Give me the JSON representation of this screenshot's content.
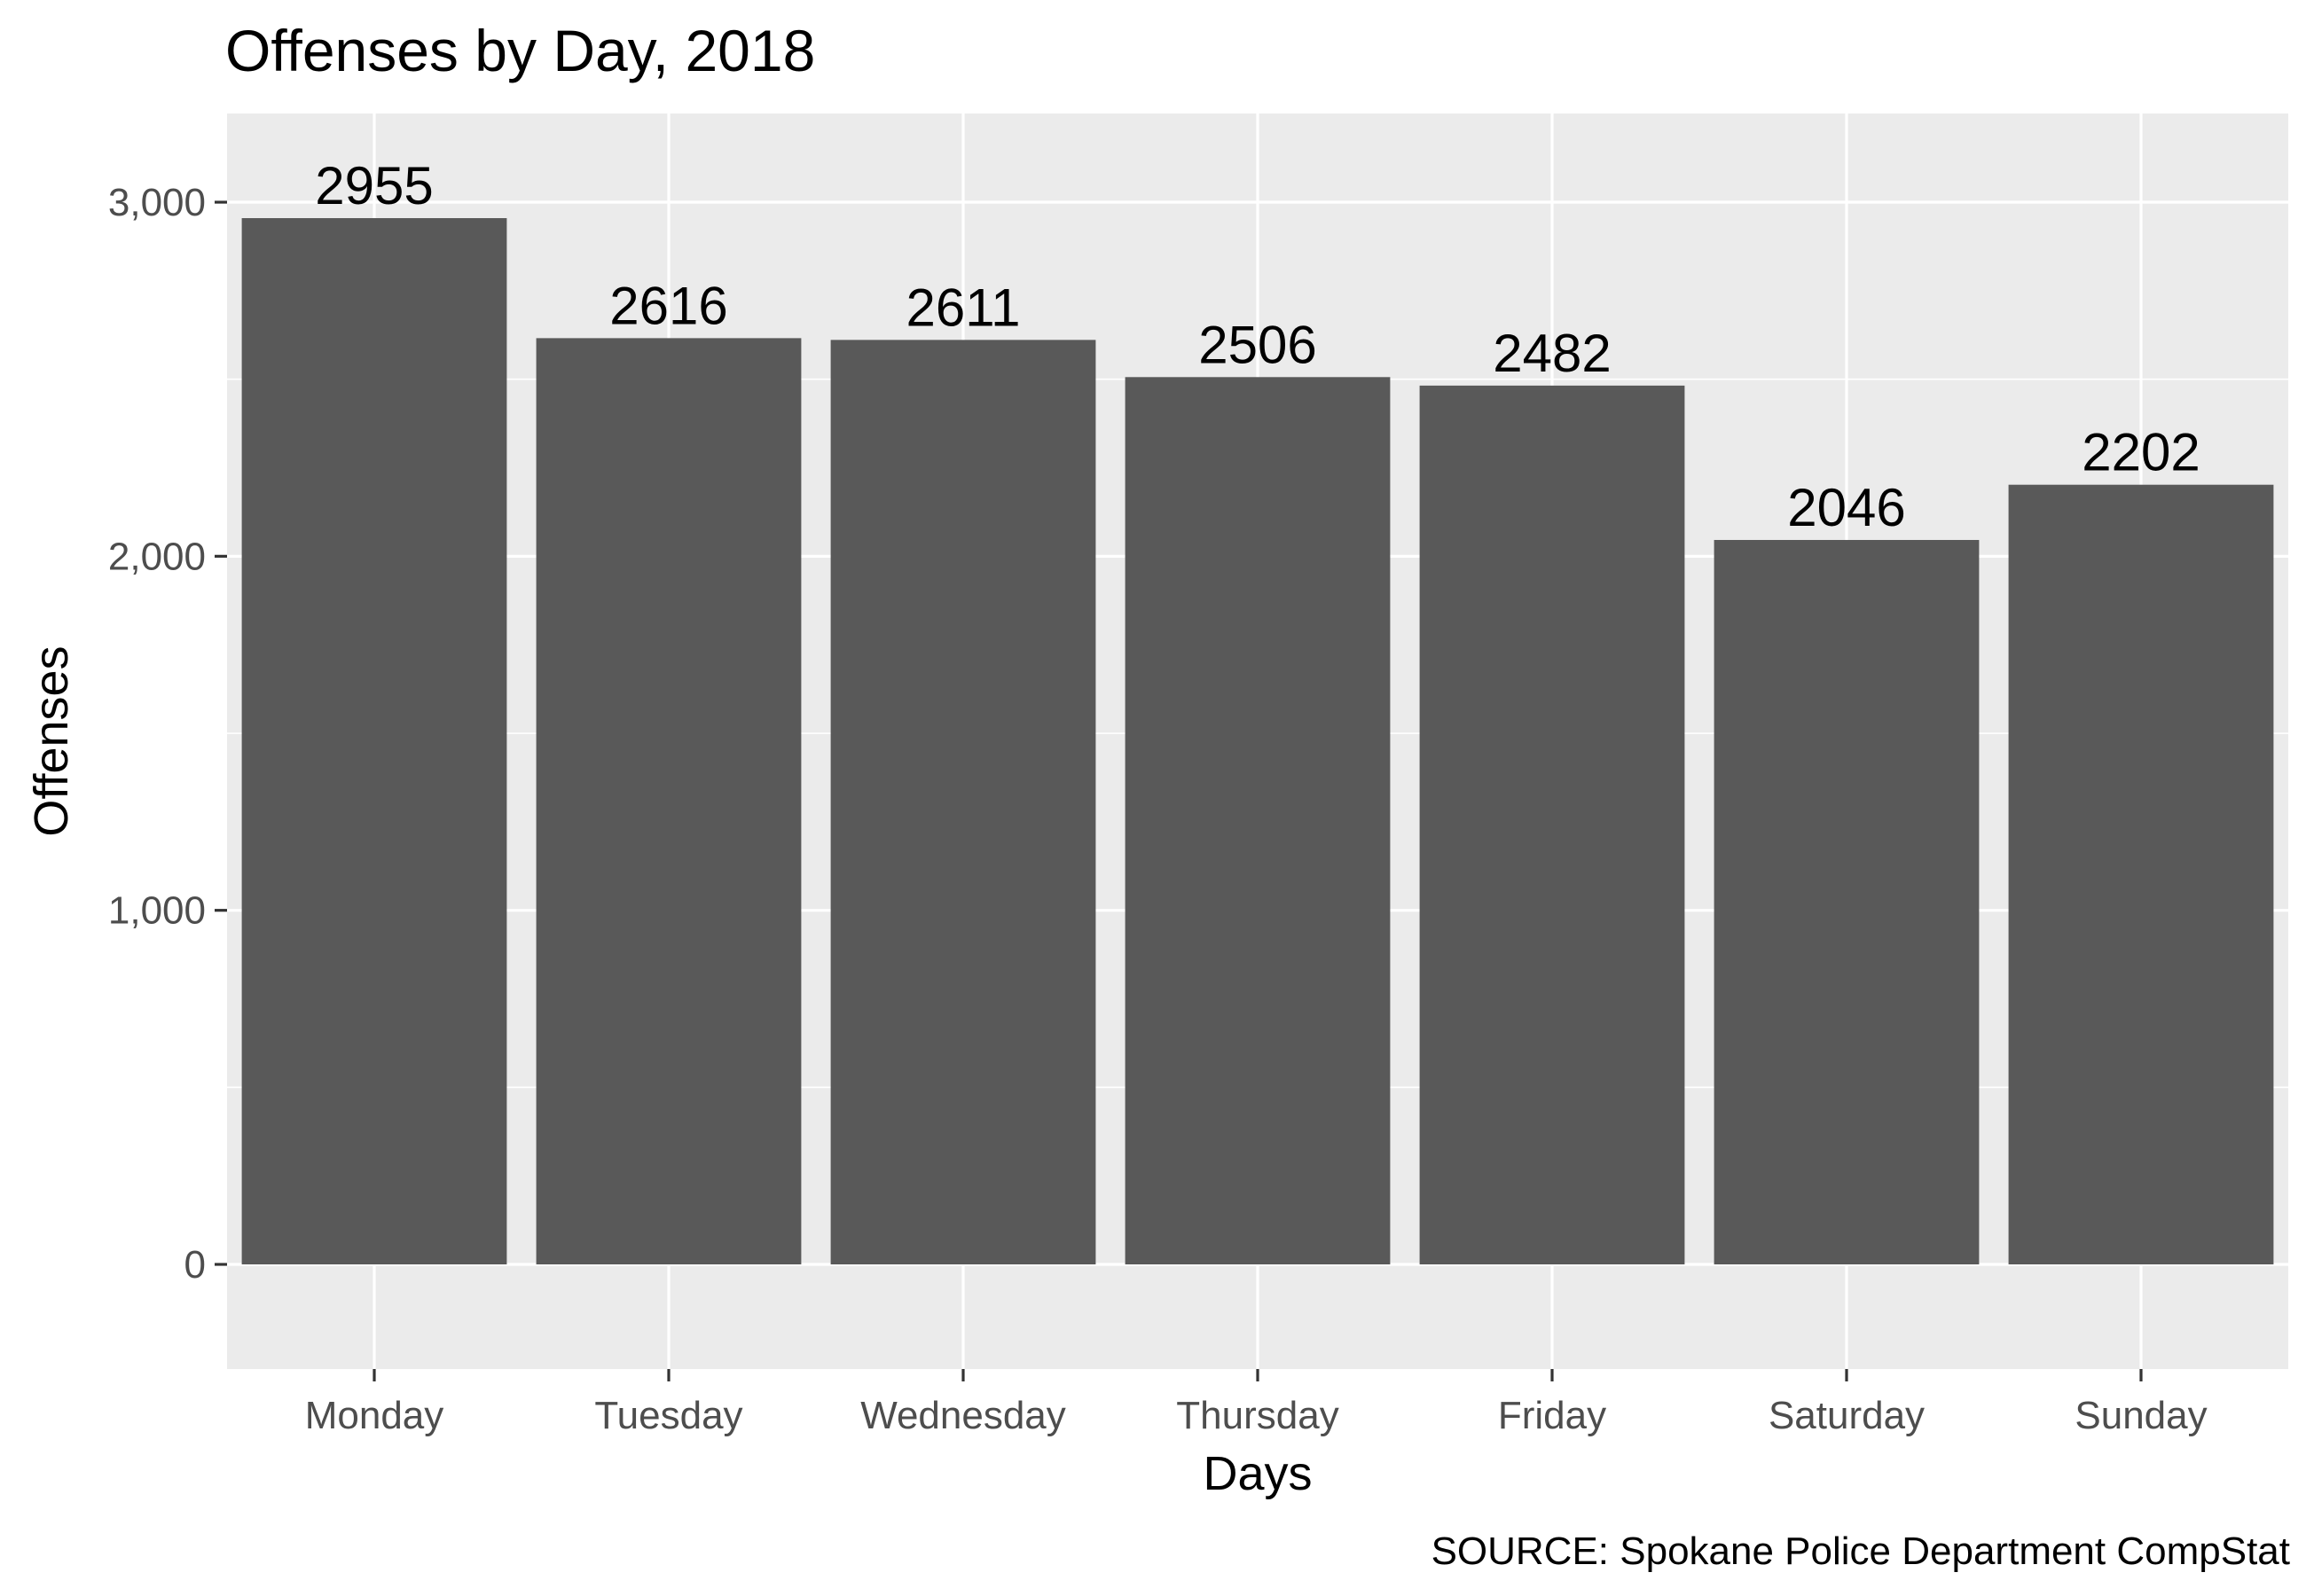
{
  "chart_data": {
    "type": "bar",
    "title": "Offenses by Day, 2018",
    "xlabel": "Days",
    "ylabel": "Offenses",
    "caption": "SOURCE: Spokane Police Department CompStat",
    "categories": [
      "Monday",
      "Tuesday",
      "Wednesday",
      "Thursday",
      "Friday",
      "Saturday",
      "Sunday"
    ],
    "values": [
      2955,
      2616,
      2611,
      2506,
      2482,
      2046,
      2202
    ],
    "data_labels": [
      "2955",
      "2616",
      "2611",
      "2506",
      "2482",
      "2046",
      "2202"
    ],
    "ylim": [
      -295.5,
      3250.5
    ],
    "yticks": [
      0,
      1000,
      2000,
      3000
    ],
    "ytick_labels": [
      "0",
      "1,000",
      "2,000",
      "3,000"
    ],
    "grid": true,
    "legend": "none",
    "colors": {
      "bar": "#595959",
      "panel": "#ebebeb",
      "grid": "#ffffff"
    }
  }
}
